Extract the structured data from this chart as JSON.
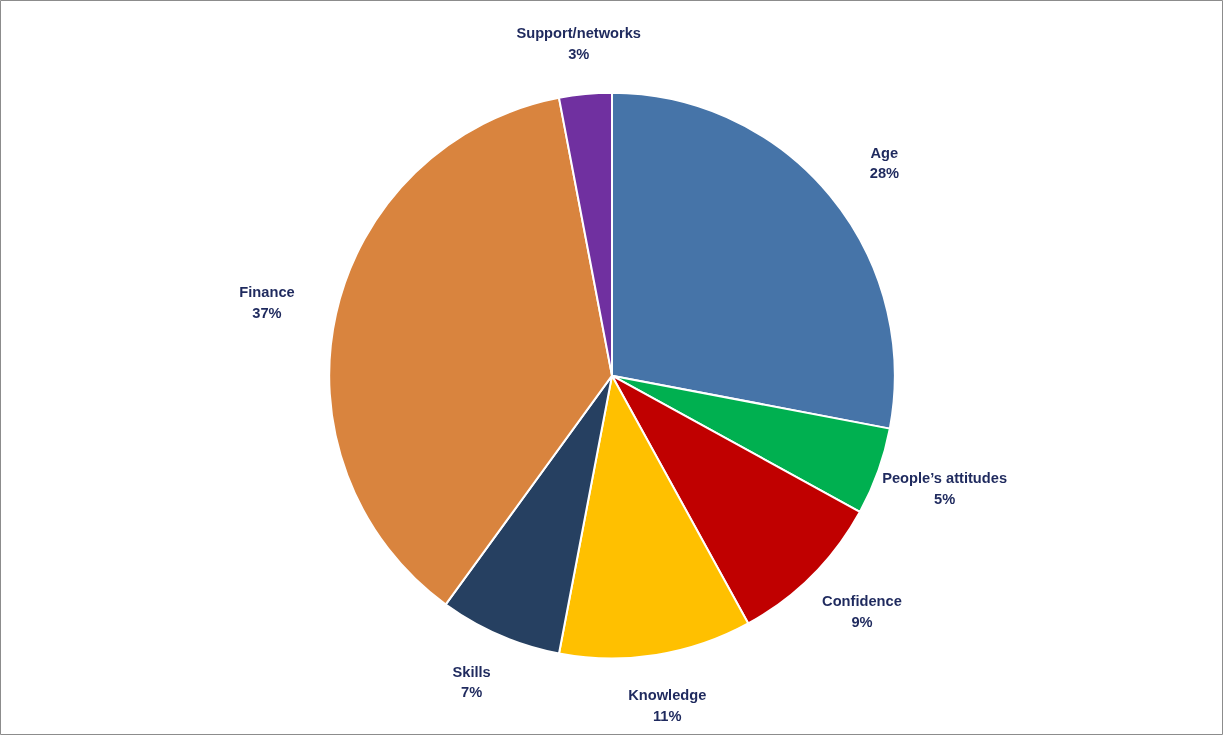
{
  "chart_data": {
    "type": "pie",
    "categories": [
      "Age",
      "People’s attitudes",
      "Confidence",
      "Knowledge",
      "Skills",
      "Finance",
      "Support/networks"
    ],
    "values": [
      28,
      5,
      9,
      11,
      7,
      37,
      3
    ],
    "colors": [
      "#4674a8",
      "#00b050",
      "#c00000",
      "#ffc000",
      "#264061",
      "#d9843e",
      "#7030a0"
    ],
    "value_labels": [
      "28%",
      "5%",
      "9%",
      "11%",
      "7%",
      "37%",
      "3%"
    ]
  }
}
